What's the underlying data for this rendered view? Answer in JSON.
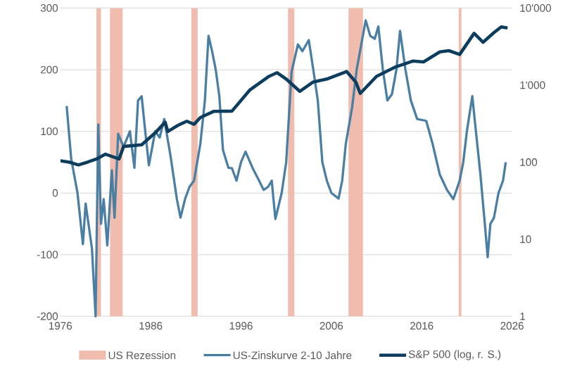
{
  "chart_data": {
    "type": "line",
    "xlim": [
      1976,
      2026
    ],
    "xticks": [
      1976,
      1986,
      1996,
      2006,
      2016,
      2026
    ],
    "ylim": [
      -200,
      300
    ],
    "yticks": [
      -200,
      -100,
      0,
      100,
      200,
      300
    ],
    "y2lim": [
      1,
      10000
    ],
    "y2ticks": [
      1,
      10,
      100,
      {
        "value": 1000,
        "label": "1'000"
      },
      {
        "value": 10000,
        "label": "10'000"
      }
    ],
    "log": "y2",
    "grid": "y",
    "legend": "bottom",
    "marker": "none",
    "line_style": "solid",
    "bands": [
      {
        "axis": "x",
        "from": 1980.0,
        "to": 1980.5,
        "label": "US Rezession",
        "color": "#efbcae"
      },
      {
        "axis": "x",
        "from": 1981.5,
        "to": 1982.9,
        "color": "#efbcae"
      },
      {
        "axis": "x",
        "from": 1990.5,
        "to": 1991.2,
        "color": "#efbcae"
      },
      {
        "axis": "x",
        "from": 2001.2,
        "to": 2001.9,
        "color": "#efbcae"
      },
      {
        "axis": "x",
        "from": 2007.9,
        "to": 2009.5,
        "color": "#efbcae"
      },
      {
        "axis": "x",
        "from": 2020.1,
        "to": 2020.4,
        "color": "#efbcae"
      }
    ],
    "series": [
      {
        "name": "US-Zinskurve 2-10 Jahre",
        "color": "#4a7fa3",
        "x": [
          1976.7,
          1977.2,
          1977.9,
          1978.5,
          1978.8,
          1979.5,
          1979.9,
          1980.2,
          1980.5,
          1980.8,
          1981.2,
          1981.7,
          1982.0,
          1982.4,
          1983.0,
          1983.7,
          1984.2,
          1984.6,
          1985.0,
          1985.4,
          1985.8,
          1986.5,
          1987.0,
          1987.5,
          1988.2,
          1988.9,
          1989.3,
          1989.8,
          1990.3,
          1990.8,
          1991.5,
          1992.0,
          1992.4,
          1992.8,
          1993.2,
          1993.6,
          1994.0,
          1994.6,
          1995.0,
          1995.5,
          1996.0,
          1996.5,
          1997.3,
          1998.0,
          1998.5,
          1999.0,
          1999.4,
          1999.8,
          2000.5,
          2001.0,
          2001.6,
          2002.3,
          2002.8,
          2003.5,
          2004.0,
          2004.5,
          2005.0,
          2005.5,
          2006.0,
          2006.8,
          2007.2,
          2007.6,
          2008.3,
          2008.8,
          2009.8,
          2010.3,
          2010.8,
          2011.2,
          2011.7,
          2012.2,
          2012.7,
          2013.2,
          2013.6,
          2014.2,
          2014.8,
          2015.5,
          2016.5,
          2017.2,
          2018.0,
          2018.8,
          2019.5,
          2020.2,
          2020.6,
          2021.0,
          2021.6,
          2022.0,
          2022.5,
          2023.0,
          2023.3,
          2023.6,
          2024.0,
          2024.5,
          2025.0,
          2025.3
        ],
        "values": [
          141,
          56,
          0,
          -83,
          -17,
          -90,
          -200,
          111,
          -50,
          -10,
          -85,
          37,
          -40,
          96,
          75,
          100,
          41,
          150,
          157,
          100,
          45,
          100,
          90,
          120,
          60,
          -10,
          -40,
          -10,
          10,
          20,
          80,
          150,
          255,
          230,
          200,
          157,
          70,
          41,
          40,
          20,
          50,
          67,
          40,
          20,
          5,
          10,
          20,
          -42,
          0,
          50,
          197,
          241,
          230,
          248,
          200,
          150,
          50,
          20,
          0,
          -9,
          20,
          80,
          139,
          200,
          280,
          255,
          250,
          270,
          200,
          150,
          160,
          200,
          263,
          200,
          150,
          120,
          117,
          80,
          30,
          5,
          -10,
          20,
          50,
          100,
          157,
          100,
          30,
          -52,
          -104,
          -50,
          -40,
          0,
          20,
          50
        ]
      },
      {
        "name": "S&P 500 (log, r. S.)",
        "axis": "y2",
        "color": "#0d3d5c",
        "x": [
          1976.0,
          1977.0,
          1978.0,
          1979.0,
          1980.0,
          1981.0,
          1982.5,
          1983.0,
          1985.0,
          1986.5,
          1987.6,
          1987.9,
          1989.0,
          1990.0,
          1990.8,
          1991.5,
          1993.0,
          1995.0,
          1997.0,
          1999.1,
          2000.0,
          2001.0,
          2002.5,
          2004.0,
          2005.5,
          2007.7,
          2008.7,
          2009.2,
          2011.0,
          2013.0,
          2015.0,
          2016.2,
          2018.0,
          2019.0,
          2020.2,
          2021.8,
          2022.8,
          2024.0,
          2024.8,
          2025.5
        ],
        "values": [
          104,
          100,
          92,
          100,
          110,
          127,
          110,
          160,
          168,
          240,
          330,
          250,
          300,
          340,
          310,
          380,
          457,
          460,
          870,
          1300,
          1450,
          1200,
          830,
          1100,
          1200,
          1500,
          1100,
          780,
          1300,
          1700,
          2050,
          2000,
          2700,
          2800,
          2500,
          4700,
          3600,
          4800,
          5700,
          5500
        ]
      }
    ]
  }
}
